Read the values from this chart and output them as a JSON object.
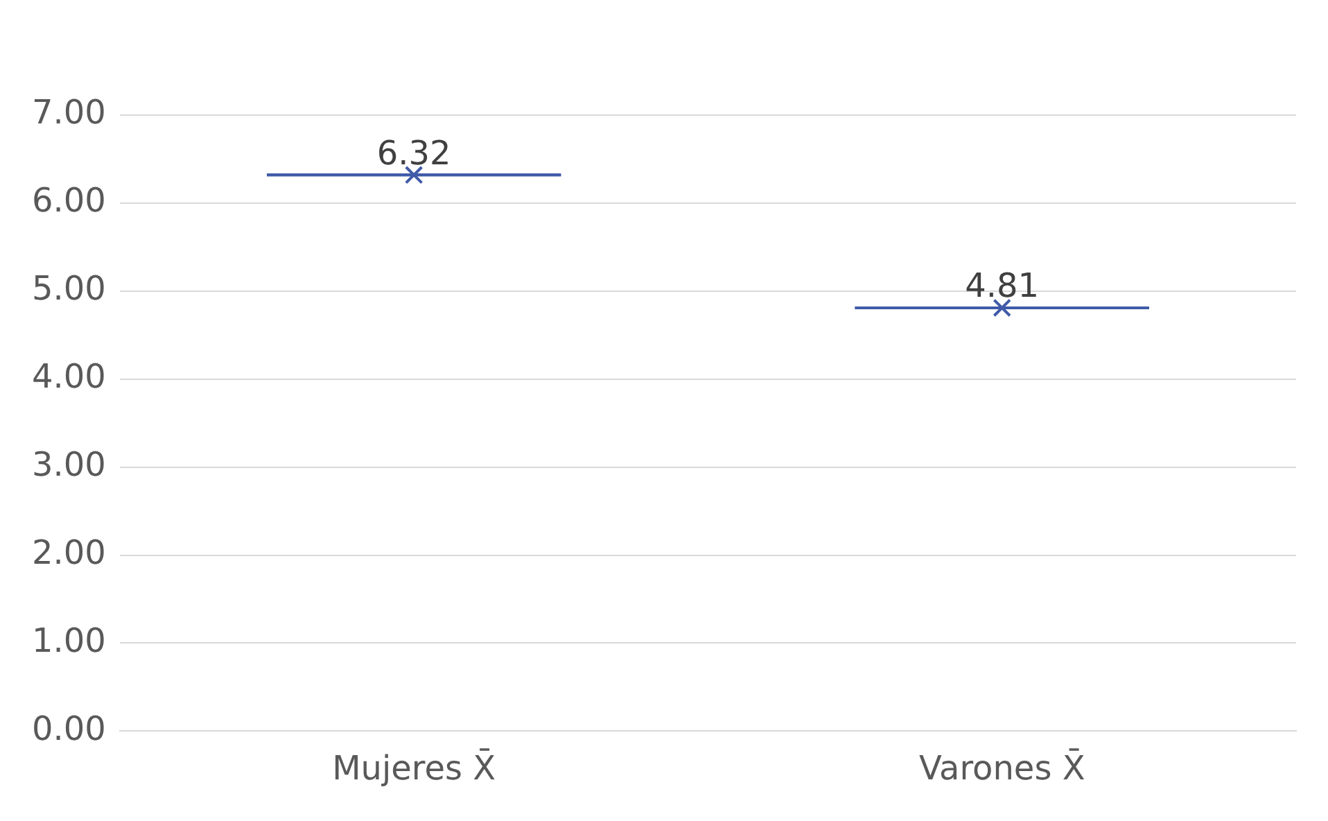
{
  "chart_data": {
    "type": "box",
    "categories": [
      "Mujeres X̄",
      "Varones X̄"
    ],
    "series": [
      {
        "color": "#3f5aa8",
        "boxes": [
          {
            "low": 6.32,
            "q1": 6.32,
            "median": 6.32,
            "q3": 6.32,
            "high": 6.32,
            "mean": 6.32
          },
          {
            "low": 4.81,
            "q1": 4.81,
            "median": 4.81,
            "q3": 4.81,
            "high": 4.81,
            "mean": 4.81
          }
        ],
        "value_labels": [
          "6.32",
          "4.81"
        ]
      }
    ],
    "ylim": [
      0,
      7
    ],
    "yticks": [
      {
        "value": 0,
        "label": "0.00"
      },
      {
        "value": 1,
        "label": "1.00"
      },
      {
        "value": 2,
        "label": "2.00"
      },
      {
        "value": 3,
        "label": "3.00"
      },
      {
        "value": 4,
        "label": "4.00"
      },
      {
        "value": 5,
        "label": "5.00"
      },
      {
        "value": 6,
        "label": "6.00"
      },
      {
        "value": 7,
        "label": "7.00"
      }
    ],
    "grid": "y",
    "legend": false,
    "marker": "cross"
  }
}
